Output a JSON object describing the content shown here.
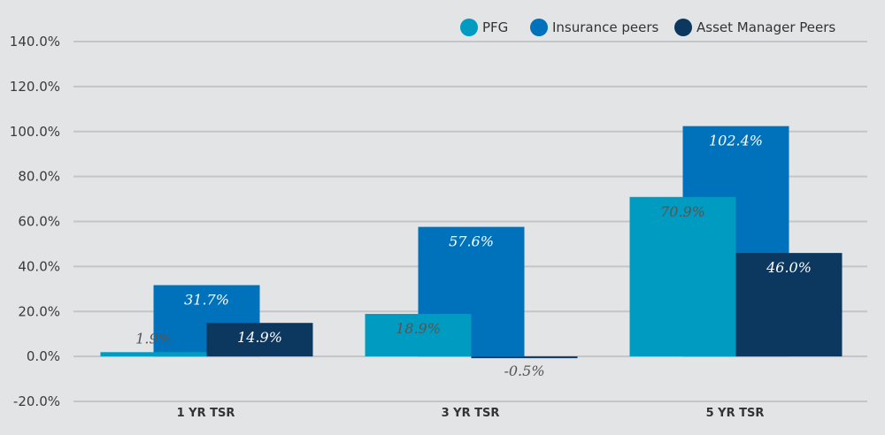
{
  "chart_data": {
    "type": "bar",
    "title": "",
    "xlabel": "",
    "ylabel": "",
    "ylim": [
      -20,
      140
    ],
    "yticks": [
      "-20.0%",
      "0.0%",
      "20.0%",
      "40.0%",
      "60.0%",
      "80.0%",
      "100.0%",
      "120.0%",
      "140.0%"
    ],
    "ytick_values": [
      -20,
      0,
      20,
      40,
      60,
      80,
      100,
      120,
      140
    ],
    "grid": true,
    "legend_position": "top-right",
    "categories": [
      "1 YR TSR",
      "3 YR TSR",
      "5 YR TSR"
    ],
    "series": [
      {
        "name": "PFG",
        "color": "#009bc0",
        "label_color": "#555555",
        "values": [
          1.9,
          18.9,
          70.9
        ],
        "labels": [
          "1.9%",
          "18.9%",
          "70.9%"
        ]
      },
      {
        "name": "Insurance peers",
        "color": "#0072bc",
        "label_color": "#ffffff",
        "values": [
          31.7,
          57.6,
          102.4
        ],
        "labels": [
          "31.7%",
          "57.6%",
          "102.4%"
        ]
      },
      {
        "name": "Asset Manager Peers",
        "color": "#0c385f",
        "label_color": "#ffffff",
        "values": [
          14.9,
          -0.5,
          46.0
        ],
        "labels": [
          "14.9%",
          "-0.5%",
          "46.0%"
        ]
      }
    ]
  }
}
